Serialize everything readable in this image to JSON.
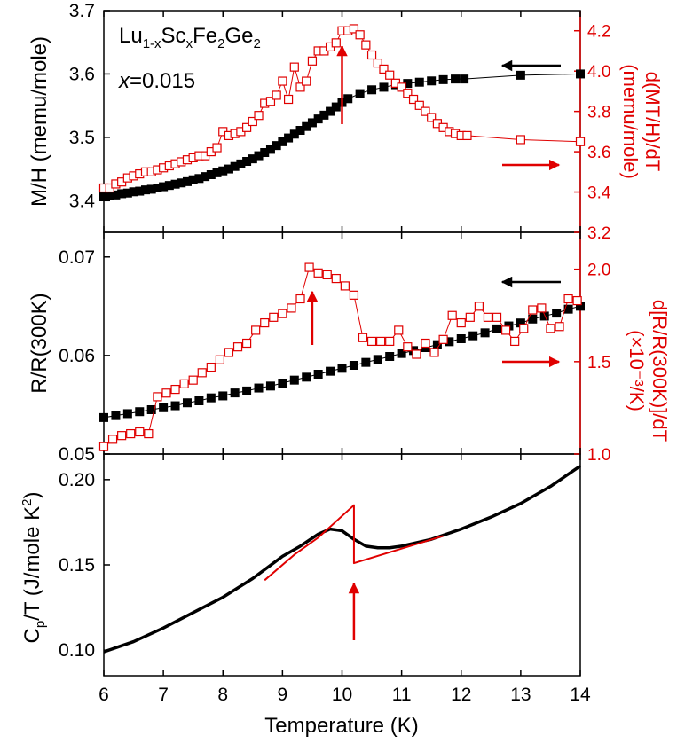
{
  "chart_data": [
    {
      "type": "scatter",
      "panel": "magnetization",
      "annotation": {
        "compound": "Lu1-xScxFe2Ge2",
        "x_label": "x",
        "x_value": "=0.015"
      },
      "ylabel": "M/H (memu/mole)",
      "ylabel_right": "d(MT/H)/dT (memu/mole)",
      "ylabel_right_line1": "d(MT/H)/dT",
      "ylabel_right_line2": "(memu/mole)",
      "ylim": [
        3.35,
        3.7
      ],
      "ylim_right": [
        3.2,
        4.3
      ],
      "yticks": [
        "3.4",
        "3.5",
        "3.6",
        "3.7"
      ],
      "yticks_right": [
        "3.2",
        "3.4",
        "3.6",
        "3.8",
        "4.0",
        "4.2"
      ],
      "xlim": [
        6,
        14
      ],
      "series": [
        {
          "axis": "left",
          "marker": "filled-square",
          "color": "#000000",
          "x": [
            6.0,
            6.1,
            6.2,
            6.3,
            6.4,
            6.5,
            6.6,
            6.7,
            6.8,
            6.9,
            7.0,
            7.1,
            7.2,
            7.3,
            7.4,
            7.5,
            7.6,
            7.7,
            7.8,
            7.9,
            8.0,
            8.1,
            8.2,
            8.3,
            8.4,
            8.5,
            8.6,
            8.7,
            8.8,
            8.9,
            9.0,
            9.1,
            9.2,
            9.3,
            9.4,
            9.5,
            9.6,
            9.7,
            9.8,
            9.9,
            10.0,
            10.1,
            10.3,
            10.5,
            10.7,
            10.9,
            11.1,
            11.3,
            11.5,
            11.7,
            11.9,
            12.05,
            13.0,
            14.0
          ],
          "y": [
            3.406,
            3.408,
            3.409,
            3.411,
            3.412,
            3.414,
            3.415,
            3.417,
            3.418,
            3.42,
            3.422,
            3.424,
            3.426,
            3.428,
            3.43,
            3.433,
            3.435,
            3.438,
            3.441,
            3.444,
            3.447,
            3.45,
            3.454,
            3.458,
            3.462,
            3.466,
            3.471,
            3.476,
            3.481,
            3.487,
            3.493,
            3.499,
            3.505,
            3.511,
            3.517,
            3.523,
            3.529,
            3.535,
            3.541,
            3.548,
            3.555,
            3.561,
            3.569,
            3.575,
            3.579,
            3.583,
            3.585,
            3.587,
            3.589,
            3.591,
            3.592,
            3.592,
            3.598,
            3.6
          ]
        },
        {
          "axis": "right",
          "marker": "open-square",
          "color": "#e00000",
          "x": [
            6.0,
            6.1,
            6.2,
            6.3,
            6.4,
            6.5,
            6.6,
            6.7,
            6.8,
            6.9,
            7.0,
            7.1,
            7.2,
            7.3,
            7.4,
            7.5,
            7.6,
            7.7,
            7.8,
            7.9,
            8.0,
            8.1,
            8.2,
            8.3,
            8.4,
            8.5,
            8.6,
            8.7,
            8.8,
            8.9,
            9.0,
            9.1,
            9.2,
            9.3,
            9.4,
            9.5,
            9.6,
            9.7,
            9.8,
            9.9,
            10.0,
            10.1,
            10.2,
            10.3,
            10.4,
            10.5,
            10.6,
            10.7,
            10.8,
            10.9,
            11.0,
            11.1,
            11.2,
            11.3,
            11.4,
            11.5,
            11.6,
            11.7,
            11.8,
            11.9,
            12.0,
            12.1,
            13.0,
            14.0
          ],
          "y": [
            3.42,
            3.42,
            3.44,
            3.45,
            3.47,
            3.48,
            3.49,
            3.5,
            3.5,
            3.51,
            3.52,
            3.53,
            3.54,
            3.55,
            3.56,
            3.57,
            3.58,
            3.58,
            3.6,
            3.62,
            3.7,
            3.68,
            3.69,
            3.7,
            3.72,
            3.75,
            3.78,
            3.84,
            3.85,
            3.88,
            3.95,
            3.86,
            4.02,
            3.92,
            3.95,
            4.05,
            4.1,
            4.1,
            4.12,
            4.14,
            4.2,
            4.2,
            4.21,
            4.18,
            4.13,
            4.08,
            4.04,
            4.01,
            3.98,
            3.94,
            3.92,
            3.89,
            3.86,
            3.83,
            3.8,
            3.77,
            3.74,
            3.72,
            3.7,
            3.69,
            3.68,
            3.68,
            3.66,
            3.65
          ]
        }
      ],
      "arrows": [
        {
          "points_to": "left-axis",
          "color": "#000000"
        },
        {
          "points_to": "right-axis",
          "color": "#e00000"
        },
        {
          "kind": "vertical-marker",
          "x": 10.0,
          "color": "#e00000"
        }
      ]
    },
    {
      "type": "scatter",
      "panel": "resistance",
      "ylabel": "R/R(300K)",
      "ylabel_right": "d[R/R(300K)]/dT (×10⁻³/K)",
      "ylabel_right_line1": "d[R/R(300K)]/dT",
      "ylabel_right_line2": "(×10⁻³/K)",
      "ylim": [
        0.05,
        0.0725
      ],
      "ylim_right": [
        1.0,
        2.2
      ],
      "yticks": [
        "0.05",
        "0.06",
        "0.07"
      ],
      "yticks_right": [
        "1.0",
        "1.5",
        "2.0"
      ],
      "xlim": [
        6,
        14
      ],
      "series": [
        {
          "axis": "left",
          "marker": "filled-square",
          "color": "#000000",
          "x": [
            6.0,
            6.2,
            6.4,
            6.6,
            6.8,
            7.0,
            7.2,
            7.4,
            7.6,
            7.8,
            8.0,
            8.2,
            8.4,
            8.6,
            8.8,
            9.0,
            9.2,
            9.4,
            9.6,
            9.8,
            10.0,
            10.2,
            10.4,
            10.6,
            10.8,
            11.0,
            11.2,
            11.4,
            11.6,
            11.8,
            12.0,
            12.2,
            12.4,
            12.6,
            12.8,
            13.0,
            13.2,
            13.4,
            13.6,
            13.8,
            14.0
          ],
          "y": [
            0.0537,
            0.0539,
            0.0541,
            0.0543,
            0.0545,
            0.0547,
            0.0549,
            0.0552,
            0.0554,
            0.0557,
            0.0559,
            0.0562,
            0.0564,
            0.0567,
            0.0569,
            0.0572,
            0.0575,
            0.0578,
            0.0581,
            0.0584,
            0.0587,
            0.059,
            0.0593,
            0.0596,
            0.0599,
            0.0602,
            0.0605,
            0.0608,
            0.0611,
            0.0614,
            0.0617,
            0.062,
            0.0623,
            0.0627,
            0.063,
            0.0633,
            0.0637,
            0.064,
            0.0643,
            0.0647,
            0.065
          ]
        },
        {
          "axis": "right",
          "marker": "open-square",
          "color": "#e00000",
          "x": [
            6.0,
            6.15,
            6.3,
            6.45,
            6.6,
            6.75,
            6.9,
            7.05,
            7.2,
            7.35,
            7.5,
            7.65,
            7.8,
            7.95,
            8.1,
            8.25,
            8.4,
            8.55,
            8.7,
            8.85,
            9.0,
            9.15,
            9.3,
            9.45,
            9.6,
            9.75,
            9.9,
            10.05,
            10.2,
            10.35,
            10.5,
            10.65,
            10.8,
            10.95,
            11.1,
            11.25,
            11.4,
            11.55,
            11.7,
            11.85,
            12.0,
            12.15,
            12.3,
            12.45,
            12.6,
            12.75,
            12.9,
            13.05,
            13.2,
            13.35,
            13.5,
            13.65,
            13.8,
            13.95
          ],
          "y": [
            1.04,
            1.08,
            1.1,
            1.11,
            1.12,
            1.11,
            1.31,
            1.33,
            1.35,
            1.38,
            1.4,
            1.44,
            1.47,
            1.51,
            1.55,
            1.58,
            1.6,
            1.67,
            1.71,
            1.74,
            1.76,
            1.79,
            1.84,
            2.01,
            1.98,
            1.97,
            1.95,
            1.91,
            1.86,
            1.63,
            1.61,
            1.61,
            1.61,
            1.67,
            1.58,
            1.54,
            1.6,
            1.55,
            1.62,
            1.75,
            1.71,
            1.74,
            1.8,
            1.74,
            1.74,
            1.67,
            1.61,
            1.68,
            1.78,
            1.79,
            1.68,
            1.69,
            1.84,
            1.83
          ]
        }
      ],
      "arrows": [
        {
          "points_to": "left-axis",
          "color": "#000000"
        },
        {
          "points_to": "right-axis",
          "color": "#e00000"
        },
        {
          "kind": "vertical-marker",
          "x": 9.5,
          "color": "#e00000"
        }
      ]
    },
    {
      "type": "line",
      "panel": "specific-heat",
      "ylabel": "Cp/T (J/mole K²)",
      "ylim": [
        0.085,
        0.215
      ],
      "yticks": [
        "0.10",
        "0.15",
        "0.20"
      ],
      "xlim": [
        6,
        14
      ],
      "xticks": [
        "6",
        "7",
        "8",
        "9",
        "10",
        "11",
        "12",
        "13",
        "14"
      ],
      "xlabel": "Temperature (K)",
      "series": [
        {
          "kind": "data",
          "color": "#000000",
          "x": [
            6.0,
            6.5,
            7.0,
            7.5,
            8.0,
            8.5,
            9.0,
            9.3,
            9.6,
            9.8,
            10.0,
            10.2,
            10.4,
            10.6,
            10.8,
            11.0,
            11.5,
            12.0,
            12.5,
            13.0,
            13.5,
            14.0
          ],
          "y": [
            0.099,
            0.105,
            0.113,
            0.122,
            0.131,
            0.142,
            0.155,
            0.161,
            0.168,
            0.171,
            0.17,
            0.165,
            0.161,
            0.16,
            0.16,
            0.161,
            0.165,
            0.171,
            0.178,
            0.186,
            0.196,
            0.208
          ]
        },
        {
          "kind": "entropy-conserving-construction",
          "color": "#e00000",
          "x": [
            8.7,
            9.2,
            9.6,
            10.2,
            10.2,
            11.7
          ],
          "y": [
            0.141,
            0.156,
            0.166,
            0.185,
            0.151,
            0.167
          ]
        }
      ],
      "arrows": [
        {
          "kind": "vertical-marker",
          "x": 10.2,
          "color": "#e00000"
        }
      ]
    }
  ]
}
